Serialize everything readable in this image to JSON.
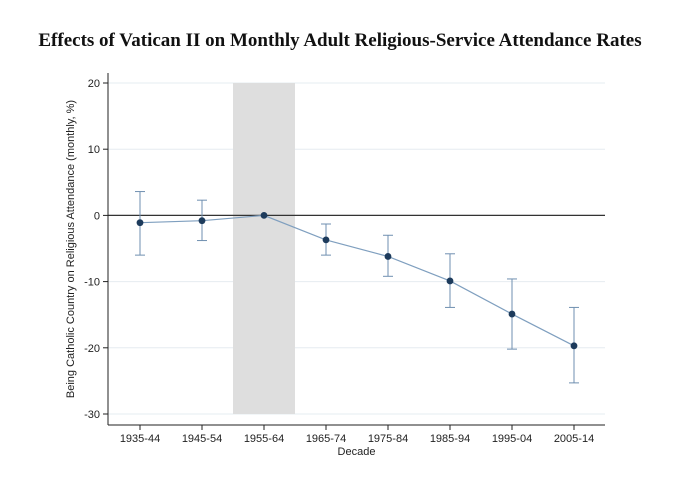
{
  "chart_data": {
    "type": "line",
    "title": "Effects of Vatican II on Monthly Adult Religious-Service Attendance Rates",
    "xlabel": "Decade",
    "ylabel": "Being Catholic Country on Religious Attendance (monthly, %)",
    "categories": [
      "1935-44",
      "1945-54",
      "1955-64",
      "1965-74",
      "1975-84",
      "1985-94",
      "1995-04",
      "2005-14"
    ],
    "yticks": [
      "20",
      "10",
      "0",
      "-10",
      "-20",
      "-30"
    ],
    "ylim": [
      -30,
      20
    ],
    "grid": true,
    "series": [
      {
        "values": [
          -1.1,
          -0.8,
          0.0,
          -3.7,
          -6.2,
          -9.9,
          -14.9,
          -19.7
        ],
        "ci_lower": [
          -6.0,
          -3.8,
          0.0,
          -6.0,
          -9.2,
          -13.9,
          -20.2,
          -25.3
        ],
        "ci_upper": [
          3.6,
          2.3,
          0.0,
          -1.3,
          -3.0,
          -5.8,
          -9.6,
          -13.9
        ]
      }
    ],
    "shaded_region": {
      "from_category": "1955-64",
      "span": "between 1945-54 and 1965-74 midpoints"
    },
    "reference_line": 0,
    "colors": {
      "line": "#7f9fbf",
      "marker": "#1d3b5c",
      "error_bar": "#6f8fb0",
      "shade": "#dedede",
      "grid": "#e6ecf0",
      "zero_line": "#333333"
    }
  }
}
